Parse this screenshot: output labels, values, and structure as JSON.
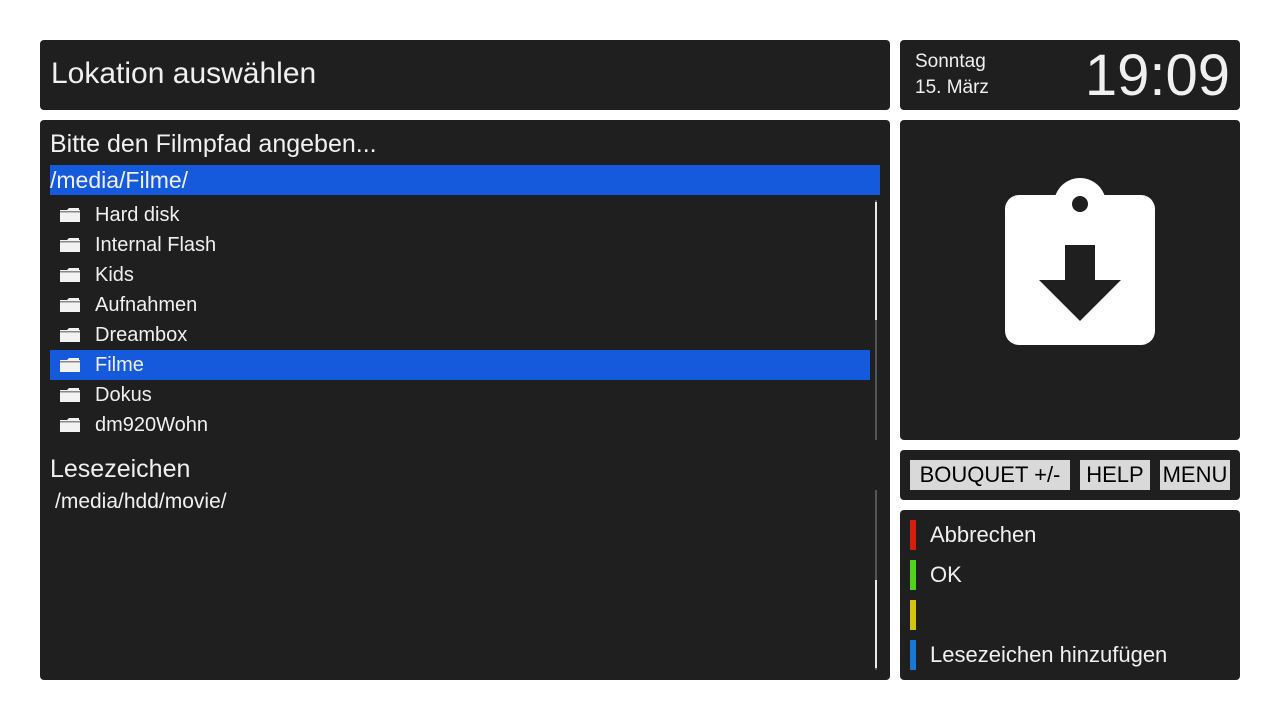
{
  "header": {
    "title": "Lokation auswählen"
  },
  "clock": {
    "day": "Sonntag",
    "date": "15. März",
    "time": "19:09"
  },
  "location": {
    "prompt": "Bitte den Filmpfad angeben...",
    "current_path": "/media/Filme/",
    "folders": [
      {
        "label": "Hard disk"
      },
      {
        "label": "Internal Flash"
      },
      {
        "label": "Kids"
      },
      {
        "label": "Aufnahmen"
      },
      {
        "label": "Dreambox"
      },
      {
        "label": "Filme",
        "selected": true
      },
      {
        "label": "Dokus"
      },
      {
        "label": "dm920Wohn"
      }
    ]
  },
  "bookmarks": {
    "title": "Lesezeichen",
    "items": [
      "/media/hdd/movie/"
    ]
  },
  "keys": [
    "BOUQUET +/-",
    "HELP",
    "MENU"
  ],
  "color_buttons": [
    {
      "color": "#d41e0e",
      "label": "Abbrechen"
    },
    {
      "color": "#4fd418",
      "label": "OK"
    },
    {
      "color": "#d4c412"
    },
    {
      "color": "#1679d6",
      "label": "Lesezeichen hinzufügen"
    }
  ]
}
